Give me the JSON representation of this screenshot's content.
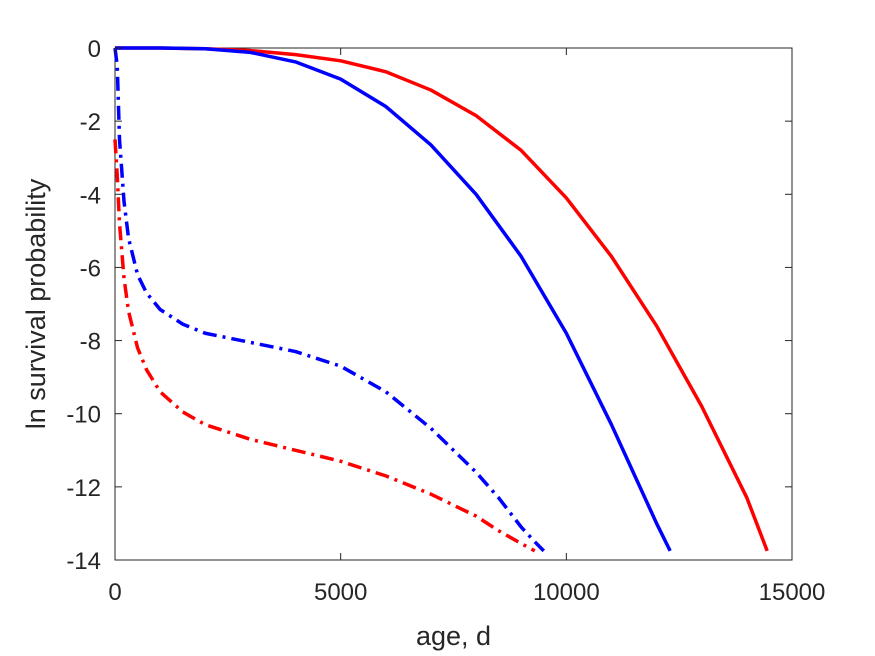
{
  "chart_data": {
    "type": "line",
    "title": "",
    "xlabel": "age, d",
    "ylabel": "ln survival probability",
    "xlim": [
      0,
      15000
    ],
    "ylim": [
      -14,
      0
    ],
    "xticks": [
      0,
      5000,
      10000,
      15000
    ],
    "yticks": [
      0,
      -2,
      -4,
      -6,
      -8,
      -10,
      -12,
      -14
    ],
    "xtick_labels": [
      "0",
      "5000",
      "10000",
      "15000"
    ],
    "ytick_labels": [
      "0",
      "-2",
      "-4",
      "-6",
      "-8",
      "-10",
      "-12",
      "-14"
    ],
    "grid": false,
    "series": [
      {
        "color": "#ff0000",
        "style": "solid",
        "x": [
          0,
          1000,
          2000,
          3000,
          4000,
          5000,
          6000,
          7000,
          8000,
          9000,
          10000,
          11000,
          12000,
          13000,
          14000,
          14450
        ],
        "y": [
          0,
          0,
          -0.02,
          -0.07,
          -0.18,
          -0.35,
          -0.65,
          -1.15,
          -1.85,
          -2.8,
          -4.1,
          -5.7,
          -7.6,
          -9.8,
          -12.3,
          -13.75
        ]
      },
      {
        "color": "#0000ff",
        "style": "solid",
        "x": [
          0,
          1000,
          2000,
          3000,
          4000,
          5000,
          6000,
          7000,
          8000,
          9000,
          10000,
          11000,
          12000,
          12300
        ],
        "y": [
          0,
          0,
          -0.02,
          -0.12,
          -0.38,
          -0.85,
          -1.6,
          -2.65,
          -4.0,
          -5.7,
          -7.8,
          -10.3,
          -13.0,
          -13.75
        ]
      },
      {
        "color": "#0000ff",
        "style": "dashdot",
        "x": [
          0,
          50,
          100,
          200,
          300,
          500,
          700,
          1000,
          1500,
          2000,
          3000,
          4000,
          5000,
          6000,
          7000,
          8000,
          8500,
          9000,
          9300,
          9500
        ],
        "y": [
          0,
          -0.5,
          -2.5,
          -4.2,
          -5.2,
          -6.2,
          -6.7,
          -7.15,
          -7.55,
          -7.8,
          -8.05,
          -8.3,
          -8.7,
          -9.4,
          -10.4,
          -11.6,
          -12.3,
          -13.1,
          -13.5,
          -13.75
        ]
      },
      {
        "color": "#ff0000",
        "style": "dashdot",
        "x": [
          0,
          50,
          100,
          200,
          300,
          500,
          700,
          1000,
          1500,
          2000,
          3000,
          4000,
          5000,
          6000,
          7000,
          8000,
          8500,
          9000,
          9300
        ],
        "y": [
          -2.5,
          -3.5,
          -4.8,
          -6.3,
          -7.2,
          -8.2,
          -8.8,
          -9.4,
          -9.95,
          -10.3,
          -10.7,
          -11.0,
          -11.3,
          -11.7,
          -12.2,
          -12.8,
          -13.2,
          -13.55,
          -13.75
        ]
      }
    ]
  }
}
